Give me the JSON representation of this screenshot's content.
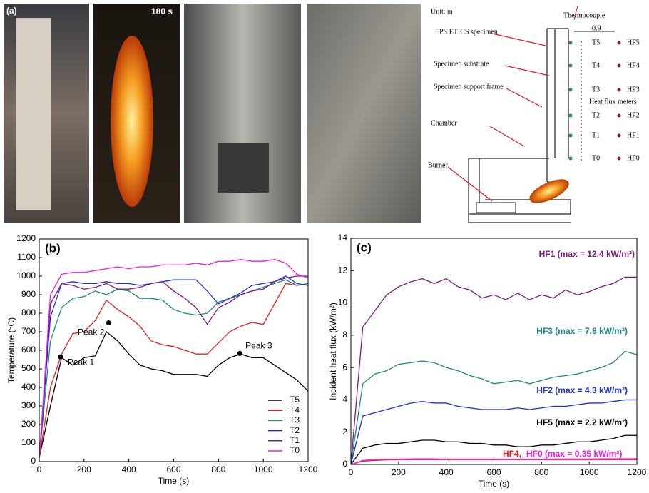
{
  "panel_a": {
    "label": "(a)",
    "photo_time": "180 s",
    "unit": "Unit: m",
    "dimension": "0.9",
    "thermocouple": "Thermocouple",
    "specimen": "EPS ETICS specimen",
    "substrate": "Specimen substrate",
    "support_frame": "Specimen support frame",
    "heat_flux_meters": "Heat flux meters",
    "chamber": "Chamber",
    "burner": "Burner",
    "thermocouple_labels": [
      "T5",
      "T4",
      "T3",
      "T2",
      "T1",
      "T0"
    ],
    "heat_flux_labels": [
      "HF5",
      "HF4",
      "HF3",
      "HF2",
      "HF1",
      "HF0"
    ]
  },
  "chart_data": [
    {
      "type": "line",
      "panel_label": "(b)",
      "x_label": "Time (s)",
      "y_label": "Temperature (°C)",
      "x": [
        0,
        50,
        100,
        150,
        200,
        250,
        300,
        350,
        400,
        450,
        500,
        550,
        600,
        650,
        700,
        750,
        800,
        850,
        900,
        950,
        1000,
        1050,
        1100,
        1150,
        1200
      ],
      "xlim": [
        0,
        1200
      ],
      "xticks": [
        0,
        200,
        400,
        600,
        800,
        1000,
        1200
      ],
      "ylim": [
        0,
        1200
      ],
      "yticks": [
        0,
        100,
        200,
        300,
        400,
        500,
        600,
        700,
        800,
        900,
        1000,
        1100,
        1200
      ],
      "legend": "lower right",
      "series": [
        {
          "name": "T5",
          "color": "#000000",
          "values": [
            20,
            300,
            560,
            520,
            560,
            570,
            700,
            650,
            580,
            520,
            500,
            490,
            470,
            470,
            470,
            460,
            520,
            560,
            580,
            560,
            560,
            520,
            480,
            440,
            380
          ]
        },
        {
          "name": "T4",
          "color": "#e8201c",
          "values": [
            20,
            400,
            580,
            690,
            700,
            760,
            870,
            820,
            780,
            730,
            650,
            630,
            620,
            600,
            580,
            580,
            640,
            700,
            730,
            750,
            740,
            850,
            960,
            950,
            960
          ]
        },
        {
          "name": "T3",
          "color": "#1a8a86",
          "values": [
            20,
            650,
            830,
            880,
            890,
            920,
            900,
            930,
            920,
            880,
            880,
            870,
            820,
            800,
            790,
            800,
            860,
            880,
            900,
            920,
            940,
            960,
            980,
            950,
            960
          ]
        },
        {
          "name": "T2",
          "color": "#1c2fd6",
          "values": [
            20,
            780,
            960,
            970,
            960,
            960,
            970,
            960,
            960,
            950,
            960,
            970,
            980,
            980,
            980,
            920,
            850,
            880,
            910,
            950,
            960,
            970,
            1000,
            960,
            950
          ]
        },
        {
          "name": "T1",
          "color": "#7a1a86",
          "values": [
            20,
            850,
            960,
            950,
            930,
            940,
            960,
            930,
            930,
            940,
            960,
            970,
            920,
            880,
            830,
            740,
            830,
            860,
            900,
            920,
            930,
            970,
            990,
            1000,
            1000
          ]
        },
        {
          "name": "T0",
          "color": "#ee1ce6",
          "values": [
            20,
            900,
            1010,
            1020,
            1020,
            1030,
            1040,
            1050,
            1040,
            1050,
            1050,
            1060,
            1060,
            1060,
            1070,
            1060,
            1080,
            1080,
            1090,
            1080,
            1080,
            1090,
            1070,
            1010,
            990
          ]
        }
      ],
      "annotations": [
        {
          "text": "Peak 1",
          "x": 95,
          "y": 565
        },
        {
          "text": "Peak 2",
          "x": 310,
          "y": 748
        },
        {
          "text": "Peak 3",
          "x": 895,
          "y": 583
        }
      ]
    },
    {
      "type": "line",
      "panel_label": "(c)",
      "x_label": "Time (s)",
      "y_label": "Incident heat flux (kW/m²)",
      "x": [
        0,
        50,
        100,
        150,
        200,
        250,
        300,
        350,
        400,
        450,
        500,
        550,
        600,
        650,
        700,
        750,
        800,
        850,
        900,
        950,
        1000,
        1050,
        1100,
        1150,
        1200
      ],
      "xlim": [
        0,
        1200
      ],
      "xticks": [
        0,
        200,
        400,
        600,
        800,
        1000,
        1200
      ],
      "ylim": [
        0,
        14
      ],
      "yticks": [
        0,
        2,
        4,
        6,
        8,
        10,
        12,
        14
      ],
      "series": [
        {
          "name": "HF1",
          "color": "#7a1a86",
          "values": [
            0,
            8.5,
            9.5,
            10.5,
            11,
            11.3,
            11.5,
            11.2,
            11.5,
            11,
            10.8,
            10.3,
            10.5,
            10.2,
            10.6,
            10.2,
            10.5,
            10.3,
            10.8,
            10.5,
            10.7,
            11,
            11.2,
            11.6,
            11.6
          ]
        },
        {
          "name": "HF3",
          "color": "#1a8a86",
          "values": [
            0,
            5,
            5.6,
            5.8,
            6.2,
            6.3,
            6.4,
            6.3,
            6.0,
            5.8,
            5.5,
            5.3,
            5.0,
            5.1,
            5.2,
            5.0,
            5.2,
            5.4,
            5.5,
            5.6,
            5.8,
            6.0,
            6.3,
            7.0,
            6.8
          ]
        },
        {
          "name": "HF2",
          "color": "#1c2fd6",
          "values": [
            0,
            3.0,
            3.2,
            3.4,
            3.6,
            3.8,
            3.9,
            3.8,
            3.8,
            3.6,
            3.5,
            3.4,
            3.4,
            3.4,
            3.5,
            3.4,
            3.5,
            3.6,
            3.6,
            3.7,
            3.8,
            3.8,
            3.9,
            4.0,
            4.0
          ]
        },
        {
          "name": "HF5",
          "color": "#000000",
          "values": [
            0,
            1.0,
            1.2,
            1.3,
            1.3,
            1.4,
            1.5,
            1.5,
            1.4,
            1.4,
            1.3,
            1.3,
            1.2,
            1.2,
            1.1,
            1.1,
            1.2,
            1.2,
            1.3,
            1.4,
            1.4,
            1.5,
            1.6,
            1.8,
            1.8
          ]
        },
        {
          "name": "HF4",
          "color": "#e8201c",
          "values": [
            0,
            0.2,
            0.25,
            0.28,
            0.3,
            0.3,
            0.3,
            0.3,
            0.3,
            0.3,
            0.3,
            0.3,
            0.3,
            0.3,
            0.3,
            0.3,
            0.3,
            0.3,
            0.3,
            0.3,
            0.3,
            0.3,
            0.3,
            0.3,
            0.3
          ]
        },
        {
          "name": "HF0",
          "color": "#ee1ce6",
          "values": [
            0,
            0.25,
            0.3,
            0.32,
            0.33,
            0.34,
            0.35,
            0.34,
            0.33,
            0.33,
            0.33,
            0.33,
            0.33,
            0.33,
            0.33,
            0.33,
            0.33,
            0.34,
            0.34,
            0.34,
            0.34,
            0.35,
            0.35,
            0.35,
            0.35
          ]
        }
      ],
      "annotations": [
        {
          "text": "HF1 (max = 12.4 kW/m²)",
          "color": "#7a1a86"
        },
        {
          "text": "HF3 (max = 7.8 kW/m²)",
          "color": "#1a8a86"
        },
        {
          "text": "HF2 (max = 4.3 kW/m²)",
          "color": "#1c2fd6"
        },
        {
          "text": "HF5 (max = 2.2 kW/m²)",
          "color": "#000000"
        },
        {
          "text": "HF4,",
          "color": "#e8201c"
        },
        {
          "text": "HF0 (max = 0.35 kW/m²)",
          "color": "#ee1ce6"
        }
      ]
    }
  ]
}
